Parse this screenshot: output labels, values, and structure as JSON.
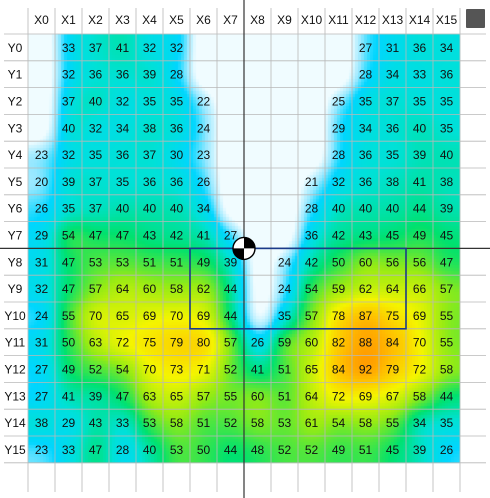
{
  "columns": [
    "X0",
    "X1",
    "X2",
    "X3",
    "X4",
    "X5",
    "X6",
    "X7",
    "X8",
    "X9",
    "X10",
    "X11",
    "X12",
    "X13",
    "X14",
    "X15"
  ],
  "rows": [
    "Y0",
    "Y1",
    "Y2",
    "Y3",
    "Y4",
    "Y5",
    "Y6",
    "Y7",
    "Y8",
    "Y9",
    "Y10",
    "Y11",
    "Y12",
    "Y13",
    "Y14",
    "Y15"
  ],
  "cells": [
    [
      null,
      33,
      37,
      41,
      32,
      32,
      null,
      null,
      null,
      null,
      null,
      null,
      27,
      31,
      36,
      34
    ],
    [
      null,
      32,
      36,
      36,
      39,
      28,
      null,
      null,
      null,
      null,
      null,
      null,
      28,
      34,
      33,
      36
    ],
    [
      null,
      37,
      40,
      32,
      35,
      35,
      22,
      null,
      null,
      null,
      null,
      25,
      35,
      37,
      35,
      35
    ],
    [
      null,
      40,
      32,
      34,
      38,
      36,
      24,
      null,
      null,
      null,
      null,
      29,
      34,
      36,
      40,
      35
    ],
    [
      23,
      32,
      35,
      36,
      37,
      30,
      23,
      null,
      null,
      null,
      null,
      28,
      36,
      35,
      39,
      40
    ],
    [
      20,
      39,
      37,
      35,
      36,
      36,
      26,
      null,
      null,
      null,
      21,
      32,
      36,
      38,
      41,
      38
    ],
    [
      26,
      35,
      37,
      40,
      40,
      40,
      34,
      null,
      null,
      null,
      28,
      40,
      40,
      40,
      44,
      39
    ],
    [
      29,
      54,
      47,
      47,
      43,
      42,
      41,
      27,
      null,
      null,
      36,
      42,
      43,
      45,
      49,
      45
    ],
    [
      31,
      47,
      53,
      53,
      51,
      51,
      49,
      39,
      null,
      24,
      42,
      50,
      60,
      56,
      56,
      47
    ],
    [
      32,
      47,
      57,
      64,
      60,
      58,
      62,
      44,
      null,
      24,
      54,
      59,
      62,
      64,
      66,
      57
    ],
    [
      24,
      55,
      70,
      65,
      69,
      70,
      69,
      44,
      null,
      35,
      57,
      78,
      87,
      75,
      69,
      55
    ],
    [
      31,
      50,
      63,
      72,
      75,
      79,
      80,
      57,
      26,
      59,
      60,
      82,
      88,
      84,
      70,
      55
    ],
    [
      27,
      49,
      52,
      54,
      70,
      73,
      71,
      52,
      41,
      51,
      65,
      84,
      92,
      79,
      72,
      58
    ],
    [
      27,
      41,
      39,
      47,
      63,
      65,
      57,
      55,
      60,
      51,
      64,
      72,
      69,
      67,
      58,
      44
    ],
    [
      38,
      29,
      43,
      33,
      53,
      58,
      51,
      52,
      58,
      53,
      61,
      54,
      58,
      55,
      34,
      35
    ],
    [
      23,
      33,
      47,
      28,
      40,
      53,
      50,
      44,
      48,
      52,
      52,
      49,
      51,
      45,
      39,
      26
    ]
  ],
  "colors": {
    "cool": "#00c8ff",
    "mid": "#00e070",
    "warm": "#f0e000",
    "hot": "#ff8800",
    "grid": "#b8b8b8",
    "crosshair": "#333333",
    "selection": "#1a3a8a",
    "button": "#555555"
  },
  "icons": {
    "center": "target-marker-icon",
    "corner": "square-button-icon"
  }
}
